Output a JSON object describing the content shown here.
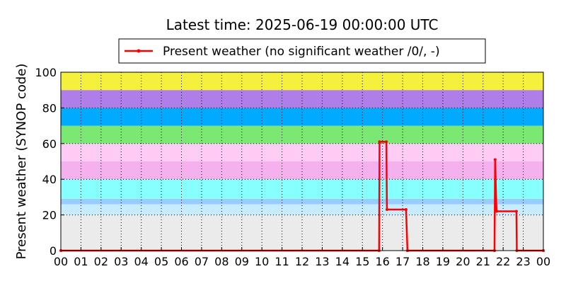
{
  "chart_data": {
    "type": "line",
    "title": "Latest time: 2025-06-19 00:00:00 UTC",
    "ylabel": "Present weather (SYNOP code)",
    "xlim": [
      0,
      24
    ],
    "ylim": [
      0,
      100
    ],
    "xticks": [
      {
        "value": 0,
        "label": "00"
      },
      {
        "value": 1,
        "label": "01"
      },
      {
        "value": 2,
        "label": "02"
      },
      {
        "value": 3,
        "label": "03"
      },
      {
        "value": 4,
        "label": "04"
      },
      {
        "value": 5,
        "label": "05"
      },
      {
        "value": 6,
        "label": "06"
      },
      {
        "value": 7,
        "label": "07"
      },
      {
        "value": 8,
        "label": "08"
      },
      {
        "value": 9,
        "label": "09"
      },
      {
        "value": 10,
        "label": "10"
      },
      {
        "value": 11,
        "label": "11"
      },
      {
        "value": 12,
        "label": "12"
      },
      {
        "value": 13,
        "label": "13"
      },
      {
        "value": 14,
        "label": "14"
      },
      {
        "value": 15,
        "label": "15"
      },
      {
        "value": 16,
        "label": "16"
      },
      {
        "value": 17,
        "label": "17"
      },
      {
        "value": 18,
        "label": "18"
      },
      {
        "value": 19,
        "label": "19"
      },
      {
        "value": 20,
        "label": "20"
      },
      {
        "value": 21,
        "label": "21"
      },
      {
        "value": 22,
        "label": "22"
      },
      {
        "value": 23,
        "label": "23"
      },
      {
        "value": 24,
        "label": "00"
      }
    ],
    "yticks": [
      0,
      20,
      40,
      60,
      80,
      100
    ],
    "grid": true,
    "bands": [
      {
        "from": 0,
        "to": 20,
        "color": "#ebebeb"
      },
      {
        "from": 20,
        "to": 26,
        "color": "#c8ecff"
      },
      {
        "from": 26,
        "to": 29,
        "color": "#99ccff"
      },
      {
        "from": 29,
        "to": 40,
        "color": "#88ffff"
      },
      {
        "from": 40,
        "to": 50,
        "color": "#f5b0ee"
      },
      {
        "from": 50,
        "to": 60,
        "color": "#ffccf5"
      },
      {
        "from": 60,
        "to": 70,
        "color": "#7ae872"
      },
      {
        "from": 70,
        "to": 80,
        "color": "#00aaff"
      },
      {
        "from": 80,
        "to": 90,
        "color": "#b07ee8"
      },
      {
        "from": 90,
        "to": 100,
        "color": "#f5f03c"
      }
    ],
    "legend": "top",
    "series": [
      {
        "name": "Present weather (no significant weather /0/, -)",
        "color": "#ff0000",
        "x": [
          0,
          15.83,
          15.85,
          16.19,
          16.22,
          17.17,
          17.24,
          21.57,
          21.6,
          21.67,
          22.66,
          22.68,
          24
        ],
        "values": [
          0,
          0,
          61,
          61,
          23,
          23,
          0,
          0,
          51,
          22,
          22,
          0,
          0
        ]
      }
    ]
  }
}
